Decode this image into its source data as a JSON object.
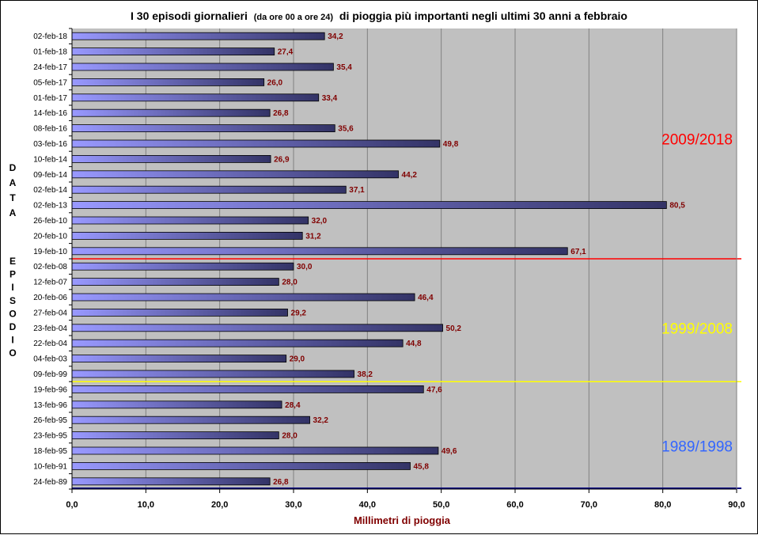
{
  "chart_data": {
    "type": "bar",
    "orientation": "horizontal",
    "title": {
      "part1": "I 30 episodi giornalieri",
      "part2": "(da ore 00 a ore 24)",
      "part3": "di pioggia più importanti negli ultimi 30 anni a febbraio"
    },
    "xlabel": "Millimetri di pioggia",
    "ylabel_top": [
      "D",
      "A",
      "T",
      "A"
    ],
    "ylabel_bottom": [
      "E",
      "P",
      "I",
      "S",
      "O",
      "D",
      "I",
      "O"
    ],
    "xlim": [
      0,
      90
    ],
    "xticks": [
      "0,0",
      "10,0",
      "20,0",
      "30,0",
      "40,0",
      "50,0",
      "60,0",
      "70,0",
      "80,0",
      "90,0"
    ],
    "categories": [
      "02-feb-18",
      "01-feb-18",
      "24-feb-17",
      "05-feb-17",
      "01-feb-17",
      "14-feb-16",
      "08-feb-16",
      "03-feb-16",
      "10-feb-14",
      "09-feb-14",
      "02-feb-14",
      "02-feb-13",
      "26-feb-10",
      "20-feb-10",
      "19-feb-10",
      "02-feb-08",
      "12-feb-07",
      "20-feb-06",
      "27-feb-04",
      "23-feb-04",
      "22-feb-04",
      "04-feb-03",
      "09-feb-99",
      "19-feb-96",
      "13-feb-96",
      "26-feb-95",
      "23-feb-95",
      "18-feb-95",
      "10-feb-91",
      "24-feb-89"
    ],
    "values": [
      34.2,
      27.4,
      35.4,
      26.0,
      33.4,
      26.8,
      35.6,
      49.8,
      26.9,
      44.2,
      37.1,
      80.5,
      32.0,
      31.2,
      67.1,
      30.0,
      28.0,
      46.4,
      29.2,
      50.2,
      44.8,
      29.0,
      38.2,
      47.6,
      28.4,
      32.2,
      28.0,
      49.6,
      45.8,
      26.8
    ],
    "value_labels": [
      "34,2",
      "27,4",
      "35,4",
      "26,0",
      "33,4",
      "26,8",
      "35,6",
      "49,8",
      "26,9",
      "44,2",
      "37,1",
      "80,5",
      "32,0",
      "31,2",
      "67,1",
      "30,0",
      "28,0",
      "46,4",
      "29,2",
      "50,2",
      "44,8",
      "29,0",
      "38,2",
      "47,6",
      "28,4",
      "32,2",
      "28,0",
      "49,6",
      "45,8",
      "26,8"
    ],
    "periods": [
      {
        "label": "2009/2018",
        "color": "#ff0000",
        "line_color": "#ff0000"
      },
      {
        "label": "1999/2008",
        "color": "#ffff00",
        "line_color": "#ffff00"
      },
      {
        "label": "1989/1998",
        "color": "#3366ff",
        "line_color": "#000080"
      }
    ],
    "colors": {
      "plot_bg": "#c0c0c0",
      "grid": "#808080",
      "bar_start": "#9999ff",
      "bar_end": "#333366",
      "value_label": "#800000"
    }
  }
}
